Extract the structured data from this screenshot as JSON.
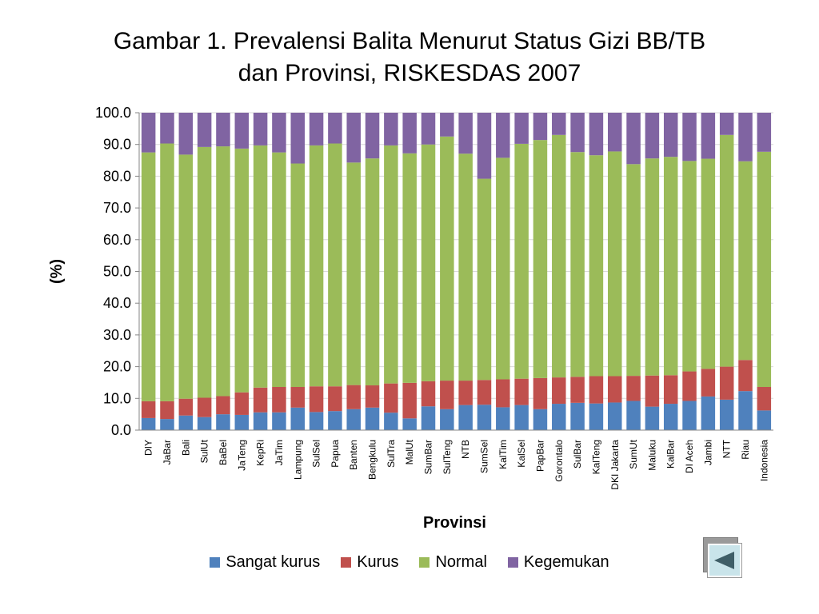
{
  "title": {
    "line1": "Gambar  1.  Prevalensi Balita Menurut Status Gizi BB/TB",
    "line2": "dan Provinsi, RISKESDAS 2007"
  },
  "colors": {
    "sangat_kurus": "#4f81bd",
    "kurus": "#c0504d",
    "normal": "#9bbb59",
    "kegemukan": "#8064a2",
    "grid": "#d9d9d9",
    "axis": "#868686"
  },
  "nav": {
    "back_icon": "triangle-left-icon"
  },
  "chart_data": {
    "type": "bar",
    "stacked": true,
    "xlabel": "Provinsi",
    "ylabel": "(%)",
    "ylim": [
      0,
      100
    ],
    "yticks": [
      "0.0",
      "10.0",
      "20.0",
      "30.0",
      "40.0",
      "50.0",
      "60.0",
      "70.0",
      "80.0",
      "90.0",
      "100.0"
    ],
    "grid": "horizontal",
    "legend_position": "bottom",
    "categories": [
      "DIY",
      "JaBar",
      "Bali",
      "SulUt",
      "BaBel",
      "JaTeng",
      "KepRi",
      "JaTim",
      "Lampung",
      "SulSel",
      "Papua",
      "Banten",
      "Bengkulu",
      "SulTra",
      "MalUt",
      "SumBar",
      "SulTeng",
      "NTB",
      "SumSel",
      "KalTim",
      "KalSel",
      "PapBar",
      "Gorontalo",
      "SulBar",
      "KalTeng",
      "DKI Jakarta",
      "SumUt",
      "Maluku",
      "KalBar",
      "DI Aceh",
      "Jambi",
      "NTT",
      "Riau",
      "Indonesia"
    ],
    "series": [
      {
        "name": "Sangat kurus",
        "color": "#4f81bd",
        "values": [
          3.8,
          3.5,
          4.6,
          4.1,
          5.0,
          4.8,
          5.6,
          5.6,
          7.1,
          5.7,
          6.0,
          6.6,
          7.1,
          5.5,
          3.7,
          7.5,
          6.6,
          7.9,
          8.0,
          7.2,
          7.9,
          6.6,
          8.3,
          8.6,
          8.4,
          8.7,
          9.2,
          7.4,
          8.3,
          9.2,
          10.6,
          9.6,
          12.3,
          6.2
        ]
      },
      {
        "name": "Kurus",
        "color": "#c0504d",
        "values": [
          5.3,
          5.6,
          5.3,
          6.1,
          5.7,
          7.1,
          7.8,
          8.0,
          6.5,
          8.1,
          7.8,
          7.6,
          7.0,
          9.2,
          11.2,
          7.9,
          9.0,
          7.7,
          7.8,
          8.8,
          8.3,
          9.8,
          8.3,
          8.2,
          8.6,
          8.3,
          7.9,
          9.8,
          9.0,
          9.3,
          8.7,
          10.4,
          9.8,
          7.4
        ]
      },
      {
        "name": "Normal",
        "color": "#9bbb59",
        "values": [
          78.4,
          81.2,
          76.9,
          79.0,
          78.7,
          76.8,
          76.3,
          73.9,
          70.4,
          75.9,
          76.5,
          70.1,
          71.5,
          75.0,
          72.3,
          74.6,
          76.9,
          71.5,
          63.4,
          69.8,
          74.0,
          75.0,
          76.4,
          70.8,
          69.6,
          70.8,
          66.7,
          68.4,
          68.8,
          66.3,
          66.2,
          73.0,
          62.6,
          74.1
        ]
      },
      {
        "name": "Kegemukan",
        "color": "#8064a2",
        "values": [
          12.5,
          9.7,
          13.2,
          10.8,
          10.6,
          11.3,
          10.3,
          12.5,
          16.0,
          10.3,
          9.7,
          15.7,
          14.4,
          10.3,
          12.8,
          10.0,
          7.5,
          12.9,
          20.8,
          14.2,
          9.8,
          8.6,
          7.0,
          12.4,
          13.4,
          12.2,
          16.2,
          14.4,
          13.9,
          15.2,
          14.5,
          7.0,
          15.3,
          12.3
        ]
      }
    ]
  }
}
